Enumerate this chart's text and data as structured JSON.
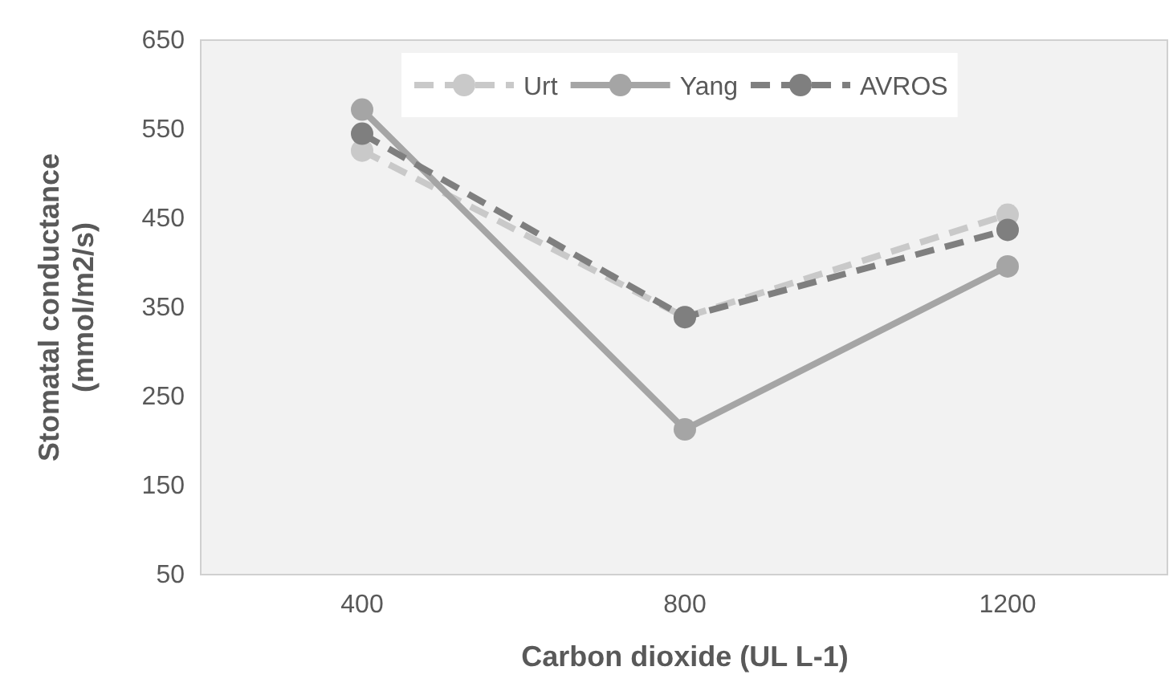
{
  "chart_data": {
    "type": "line",
    "xlabel": "Carbon dioxide (UL L-1)",
    "ylabel": "Stomatal conductance (mmol/m2/s)",
    "categories": [
      "400",
      "800",
      "1200"
    ],
    "series": [
      {
        "name": "Urt",
        "color": "#c9c9c9",
        "line_style": "dashed",
        "values": [
          526,
          339,
          454
        ]
      },
      {
        "name": "Yang",
        "color": "#a5a5a5",
        "line_style": "solid",
        "values": [
          572,
          213,
          396
        ]
      },
      {
        "name": "AVROS",
        "color": "#7f7f7f",
        "line_style": "dashed",
        "values": [
          545,
          339,
          437
        ]
      }
    ],
    "ylim": [
      50,
      650
    ],
    "yticks": [
      50,
      150,
      250,
      350,
      450,
      550,
      650
    ],
    "grid": false,
    "legend": "top",
    "marker": "circle"
  }
}
